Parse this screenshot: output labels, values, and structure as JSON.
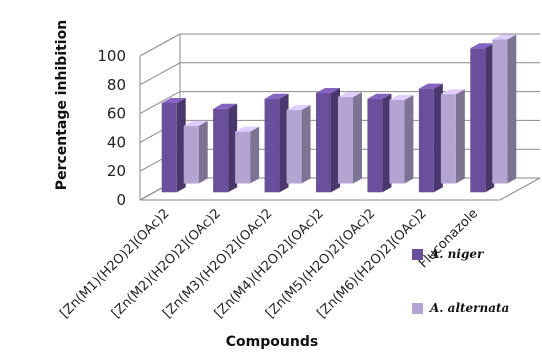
{
  "chart_data": {
    "type": "bar",
    "title": "",
    "xlabel": "Compounds",
    "ylabel": "Percentage inhibition",
    "categories": [
      "[Zn(M1)(H2O)2](OAc)2",
      "[Zn(M2)(H2O)2](OAc)2",
      "[Zn(M3)(H2O)2](OAc)2",
      "[Zn(M4)(H2O)2](OAc)2",
      "[Zn(M5)(H2O)2](OAc)2",
      "[Zn(M6)(H2O)2](OAc)2",
      "Fluconazole"
    ],
    "series": [
      {
        "name": "A. niger",
        "values": [
          62,
          58,
          65,
          69,
          65,
          72,
          100
        ],
        "color": "#6a4f9c"
      },
      {
        "name": "A. alternata",
        "values": [
          40,
          36,
          51,
          60,
          58,
          62,
          100
        ],
        "color": "#b3a4d2"
      }
    ],
    "ylim": [
      0,
      100
    ],
    "yticks": [
      0,
      20,
      40,
      60,
      80,
      100
    ],
    "grid": true,
    "three_d": true,
    "legend_position": "right"
  }
}
